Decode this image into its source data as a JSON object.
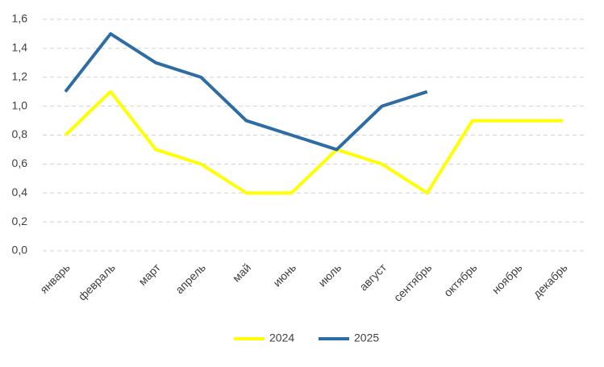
{
  "chart_data": {
    "type": "line",
    "categories": [
      "январь",
      "февраль",
      "март",
      "апрель",
      "май",
      "июнь",
      "июль",
      "август",
      "сентябрь",
      "октябрь",
      "ноябрь",
      "декабрь"
    ],
    "series": [
      {
        "name": "2024",
        "color": "#ffff00",
        "values": [
          0.8,
          1.1,
          0.7,
          0.6,
          0.4,
          0.4,
          0.7,
          0.6,
          0.4,
          0.9,
          0.9,
          0.9
        ]
      },
      {
        "name": "2025",
        "color": "#2e6ca4",
        "values": [
          1.1,
          1.5,
          1.3,
          1.2,
          0.9,
          0.8,
          0.7,
          1.0,
          1.1,
          null,
          null,
          null
        ]
      }
    ],
    "ylim": [
      0,
      1.6
    ],
    "yticks": [
      {
        "value": 0,
        "label": "0,0"
      },
      {
        "value": 0.2,
        "label": "0,2"
      },
      {
        "value": 0.4,
        "label": "0,4"
      },
      {
        "value": 0.6,
        "label": "0,6"
      },
      {
        "value": 0.8,
        "label": "0,8"
      },
      {
        "value": 1.0,
        "label": "1,0"
      },
      {
        "value": 1.2,
        "label": "1,2"
      },
      {
        "value": 1.4,
        "label": "1,4"
      },
      {
        "value": 1.6,
        "label": "1,6"
      }
    ],
    "grid": true,
    "legend": "bottom"
  }
}
